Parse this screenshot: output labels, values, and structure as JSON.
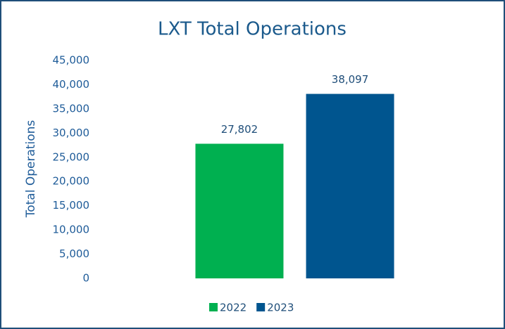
{
  "chart_data": {
    "type": "bar",
    "title": "LXT Total Operations",
    "y_label": "Total Operations",
    "categories": [
      null
    ],
    "series": [
      {
        "name": "2022",
        "color": "#00b050",
        "values": [
          27802
        ],
        "value_labels": [
          "27,802"
        ]
      },
      {
        "name": "2023",
        "color": "#00558f",
        "values": [
          38097
        ],
        "value_labels": [
          "38,097"
        ]
      }
    ],
    "ylim": [
      0,
      45000
    ],
    "yticks": [
      0,
      {
        "value": 5000,
        "label": "5,000"
      },
      {
        "value": 10000,
        "label": "10,000"
      },
      {
        "value": 15000,
        "label": "15,000"
      },
      {
        "value": 20000,
        "label": "20,000"
      },
      {
        "value": 25000,
        "label": "25,000"
      },
      {
        "value": 30000,
        "label": "30,000"
      },
      {
        "value": 35000,
        "label": "35,000"
      },
      {
        "value": 40000,
        "label": "40,000"
      },
      {
        "value": 45000,
        "label": "45,000"
      }
    ],
    "grid": false,
    "legend": "bottom"
  }
}
